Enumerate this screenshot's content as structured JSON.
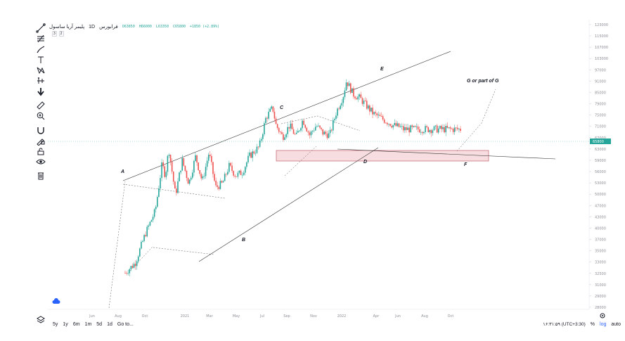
{
  "legend": {
    "symbol": "پلیمر آریا ساسول",
    "interval": "1D",
    "exchange": "فرابورس",
    "open": "O63850",
    "high": "H66000",
    "low": "L63350",
    "close": "C65800",
    "change": "+1850 (+2.89%)",
    "pills": [
      "3",
      "2"
    ]
  },
  "toolbar": {
    "tools": [
      {
        "name": "trendline-tool",
        "icon": "trendline-icon"
      },
      {
        "name": "fib-tool",
        "icon": "fib-icon"
      },
      {
        "name": "brush-tool",
        "icon": "brush-icon"
      },
      {
        "name": "text-tool",
        "icon": "text-icon"
      },
      {
        "name": "pattern-tool",
        "icon": "pattern-icon"
      },
      {
        "name": "prediction-tool",
        "icon": "prediction-icon"
      },
      {
        "name": "arrow-down-tool",
        "icon": "arrow-down-icon"
      },
      {
        "name": "ruler-tool",
        "icon": "ruler-icon"
      },
      {
        "name": "zoom-tool",
        "icon": "zoom-in-icon"
      },
      {
        "name": "magnet-tool",
        "icon": "magnet-icon"
      },
      {
        "name": "stay-drawing-tool",
        "icon": "pencil-lock-icon"
      },
      {
        "name": "lock-tool",
        "icon": "lock-icon"
      },
      {
        "name": "visibility-tool",
        "icon": "eye-icon"
      },
      {
        "name": "trash-tool",
        "icon": "trash-icon"
      }
    ]
  },
  "bottom_bar": {
    "ranges": [
      "5y",
      "1y",
      "6m",
      "1m",
      "5d",
      "1d"
    ],
    "goto": "Go to...",
    "time": "۱۶:۳۱:۵۹ (UTC+3:30)",
    "percent": "%",
    "log": "log",
    "auto": "auto"
  },
  "colors": {
    "up": "#26a69a",
    "down": "#ef5350",
    "green_candle": "#26a69a",
    "red_candle": "#ef5350",
    "zone_fill": "#f8d7da",
    "zone_stroke": "#b74b5a",
    "last_price_tag": "#26a69a"
  },
  "chart_data": {
    "type": "candlestick",
    "y_axis_labels": [
      "123000",
      "115000",
      "107000",
      "103000",
      "97000",
      "91000",
      "85000",
      "79000",
      "75000",
      "71000",
      "67000",
      "63000",
      "59000",
      "56000",
      "53000",
      "50000",
      "47000",
      "43000",
      "40000",
      "37000",
      "35000",
      "33000",
      "32500",
      "31000",
      "29000",
      "28000"
    ],
    "last_price": "65800",
    "x_axis_labels": [
      "Jun",
      "Aug",
      "Oct",
      "2021",
      "Mar",
      "May",
      "Jul",
      "Sep",
      "Nov",
      "2022",
      "Apr",
      "Jun",
      "Aug",
      "Oct"
    ],
    "wave_labels": [
      "A",
      "B",
      "C",
      "D",
      "E",
      "F",
      "G or part of G"
    ],
    "price_path": [
      [
        0.0,
        0.0
      ],
      [
        0.03,
        0.05
      ],
      [
        0.06,
        0.2
      ],
      [
        0.09,
        0.32
      ],
      [
        0.11,
        0.56
      ],
      [
        0.12,
        0.5
      ],
      [
        0.13,
        0.64
      ],
      [
        0.15,
        0.4
      ],
      [
        0.17,
        0.58
      ],
      [
        0.19,
        0.46
      ],
      [
        0.21,
        0.6
      ],
      [
        0.23,
        0.47
      ],
      [
        0.25,
        0.62
      ],
      [
        0.27,
        0.44
      ],
      [
        0.29,
        0.46
      ],
      [
        0.31,
        0.55
      ],
      [
        0.33,
        0.5
      ],
      [
        0.35,
        0.52
      ],
      [
        0.37,
        0.6
      ],
      [
        0.4,
        0.65
      ],
      [
        0.42,
        0.8
      ],
      [
        0.44,
        0.85
      ],
      [
        0.45,
        0.76
      ],
      [
        0.47,
        0.7
      ],
      [
        0.49,
        0.76
      ],
      [
        0.51,
        0.7
      ],
      [
        0.53,
        0.79
      ],
      [
        0.55,
        0.71
      ],
      [
        0.57,
        0.76
      ],
      [
        0.59,
        0.72
      ],
      [
        0.61,
        0.71
      ],
      [
        0.63,
        0.83
      ],
      [
        0.65,
        0.91
      ],
      [
        0.66,
        0.99
      ],
      [
        0.68,
        0.92
      ],
      [
        0.7,
        0.9
      ],
      [
        0.72,
        0.86
      ],
      [
        0.74,
        0.82
      ],
      [
        0.76,
        0.8
      ],
      [
        0.78,
        0.78
      ],
      [
        0.8,
        0.76
      ],
      [
        0.82,
        0.75
      ],
      [
        0.83,
        0.74
      ]
    ]
  }
}
